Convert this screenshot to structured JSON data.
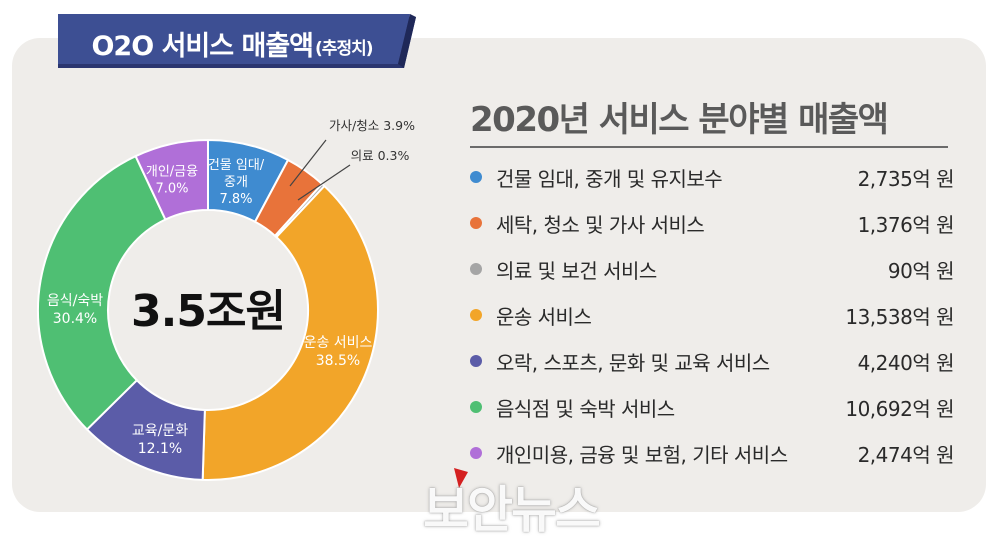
{
  "banner": {
    "title": "O2O 서비스 매출액",
    "subtitle": "(추정치)",
    "color": "#3d4f93"
  },
  "chart_data": {
    "type": "pie",
    "title": "2020년 서비스 분야별 매출액",
    "center_label": "3.5조원",
    "slices": [
      {
        "name": "건물 임대/중개",
        "label_lines": [
          "건물 임대/",
          "중개"
        ],
        "percent_text": "7.8%",
        "value": 7.8,
        "color": "#3f8bd0"
      },
      {
        "name": "가사/청소",
        "label_lines": [
          "가사/청소"
        ],
        "percent_text": "3.9%",
        "value": 3.9,
        "color": "#e8733a"
      },
      {
        "name": "의료",
        "label_lines": [
          "의료"
        ],
        "percent_text": "0.3%",
        "value": 0.3,
        "color": "#a5a5a5"
      },
      {
        "name": "운송 서비스",
        "label_lines": [
          "운송 서비스"
        ],
        "percent_text": "38.5%",
        "value": 38.5,
        "color": "#f2a529"
      },
      {
        "name": "교육/문화",
        "label_lines": [
          "교육/문화"
        ],
        "percent_text": "12.1%",
        "value": 12.1,
        "color": "#5b5ca8"
      },
      {
        "name": "음식/숙박",
        "label_lines": [
          "음식/숙박"
        ],
        "percent_text": "30.4%",
        "value": 30.4,
        "color": "#4fbf73"
      },
      {
        "name": "개인/금융",
        "label_lines": [
          "개인/금융"
        ],
        "percent_text": "7.0%",
        "value": 7.0,
        "color": "#b06fd8"
      }
    ],
    "legend": [
      {
        "label": "건물 임대, 중개 및 유지보수",
        "value_text": "2,735억 원",
        "value": 2735,
        "color": "#3f8bd0"
      },
      {
        "label": "세탁, 청소 및 가사 서비스",
        "value_text": "1,376억 원",
        "value": 1376,
        "color": "#e8733a"
      },
      {
        "label": "의료 및 보건 서비스",
        "value_text": "90억 원",
        "value": 90,
        "color": "#a5a5a5"
      },
      {
        "label": "운송 서비스",
        "value_text": "13,538억 원",
        "value": 13538,
        "color": "#f2a529"
      },
      {
        "label": "오락, 스포츠, 문화 및 교육 서비스",
        "value_text": "4,240억 원",
        "value": 4240,
        "color": "#5b5ca8"
      },
      {
        "label": "음식점 및 숙박 서비스",
        "value_text": "10,692억 원",
        "value": 10692,
        "color": "#4fbf73"
      },
      {
        "label": "개인미용, 금융 및 보험, 기타 서비스",
        "value_text": "2,474억 원",
        "value": 2474,
        "color": "#b06fd8"
      }
    ]
  },
  "watermark": {
    "text": "보안뉴스"
  }
}
